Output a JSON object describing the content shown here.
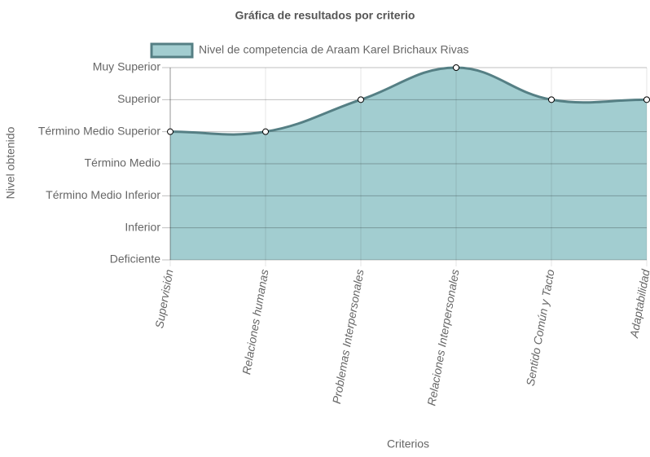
{
  "chart_data": {
    "type": "line",
    "title": "Gráfica de resultados por criterio",
    "x_label": "Criterios",
    "y_label": "Nivel obtenido",
    "categories": [
      "Supervisión",
      "Relaciones humanas",
      "Problemas Interpersonales",
      "Relaciones Interpersonales",
      "Sentido Común y Tacto",
      "Adaptabilidad"
    ],
    "series": [
      {
        "name": "Nivel de competencia de Araam Karel Brichaux Rivas",
        "color": "#557f84",
        "fill_color": "#a2cdd0",
        "values": [
          4,
          4,
          5,
          6,
          5,
          5
        ]
      }
    ],
    "ylim": [
      0,
      6
    ],
    "yticks": [
      {
        "value": 0,
        "label": "Deficiente"
      },
      {
        "value": 1,
        "label": "Inferior"
      },
      {
        "value": 2,
        "label": "Término Medio Inferior"
      },
      {
        "value": 3,
        "label": "Término Medio"
      },
      {
        "value": 4,
        "label": "Término Medio Superior"
      },
      {
        "value": 5,
        "label": "Superior"
      },
      {
        "value": 6,
        "label": "Muy Superior"
      }
    ],
    "grid": true,
    "legend": "top"
  }
}
